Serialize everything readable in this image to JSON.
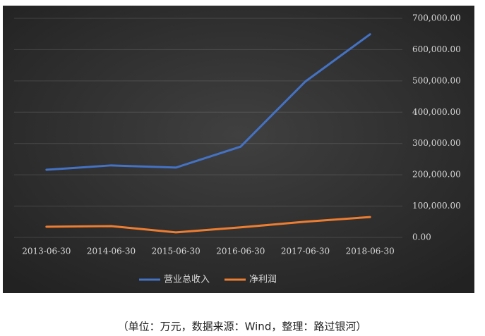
{
  "chart_data": {
    "type": "line",
    "categories": [
      "2013-06-30",
      "2014-06-30",
      "2015-06-30",
      "2016-06-30",
      "2017-06-30",
      "2018-06-30"
    ],
    "series": [
      {
        "name": "营业总收入",
        "color": "#4472c4",
        "values": [
          216000,
          230000,
          223000,
          290000,
          498000,
          649000
        ]
      },
      {
        "name": "净利润",
        "color": "#ed7d31",
        "values": [
          34000,
          36000,
          16000,
          32000,
          50000,
          65000
        ]
      }
    ],
    "ylim": [
      0,
      700000
    ],
    "yticks": [
      {
        "value": 0,
        "label": "0.00"
      },
      {
        "value": 100000,
        "label": "100,000.00"
      },
      {
        "value": 200000,
        "label": "200,000.00"
      },
      {
        "value": 300000,
        "label": "300,000.00"
      },
      {
        "value": 400000,
        "label": "400,000.00"
      },
      {
        "value": 500000,
        "label": "500,000.00"
      },
      {
        "value": 600000,
        "label": "600,000.00"
      },
      {
        "value": 700000,
        "label": "700,000.00"
      }
    ],
    "grid": true,
    "legend": "bottom"
  },
  "caption": "（单位：万元，数据来源：Wind，整理：路过银河）"
}
